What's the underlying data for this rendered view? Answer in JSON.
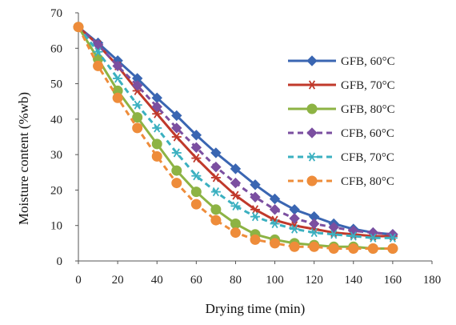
{
  "chart_data": {
    "type": "line",
    "title": "",
    "xlabel": "Drying time (min)",
    "ylabel": "Moisture content (%wb)",
    "xlim": [
      0,
      180
    ],
    "ylim": [
      0,
      70
    ],
    "x_ticks": [
      0,
      20,
      40,
      60,
      80,
      100,
      120,
      140,
      160,
      180
    ],
    "y_ticks": [
      0,
      10,
      20,
      30,
      40,
      50,
      60,
      70
    ],
    "grid": false,
    "legend_position": "right",
    "series": [
      {
        "name": "GFB, 60°C",
        "color": "#3a66b2",
        "line_style": "solid",
        "marker": "diamond",
        "x": [
          0,
          10,
          20,
          30,
          40,
          50,
          60,
          70,
          80,
          90,
          100,
          110,
          120,
          130,
          140,
          150,
          160
        ],
        "y": [
          66,
          61.5,
          56.5,
          51.5,
          46,
          41,
          35.5,
          30.5,
          26,
          21.5,
          17.5,
          14.5,
          12.5,
          10.5,
          9,
          8,
          7.5
        ]
      },
      {
        "name": "GFB, 70°C",
        "color": "#c0392b",
        "line_style": "solid",
        "marker": "asterisk",
        "x": [
          0,
          10,
          20,
          30,
          40,
          50,
          60,
          70,
          80,
          90,
          100,
          110,
          120,
          130,
          140,
          150,
          160
        ],
        "y": [
          66,
          61,
          55,
          48,
          41.5,
          35,
          29,
          23.5,
          18.5,
          14.5,
          11.5,
          10,
          9,
          8,
          7.5,
          7,
          7
        ]
      },
      {
        "name": "GFB, 80°C",
        "color": "#8db344",
        "line_style": "solid",
        "marker": "circle",
        "x": [
          0,
          10,
          20,
          30,
          40,
          50,
          60,
          70,
          80,
          90,
          100,
          110,
          120,
          130,
          140,
          150,
          160
        ],
        "y": [
          66,
          57,
          48,
          40.5,
          33,
          25.5,
          19.5,
          14.5,
          10.5,
          7.5,
          6,
          5,
          4.5,
          4,
          4,
          3.5,
          3.5
        ]
      },
      {
        "name": "CFB, 60°C",
        "color": "#7b4fa0",
        "line_style": "dashed",
        "marker": "diamond",
        "x": [
          0,
          10,
          20,
          30,
          40,
          50,
          60,
          70,
          80,
          90,
          100,
          110,
          120,
          130,
          140,
          150,
          160
        ],
        "y": [
          66,
          61,
          55,
          49.5,
          43.5,
          37.5,
          32,
          26.5,
          22,
          18,
          14.5,
          12,
          10.5,
          9.5,
          8.5,
          8,
          7.5
        ]
      },
      {
        "name": "CFB, 70°C",
        "color": "#3bb0c0",
        "line_style": "dashed",
        "marker": "asterisk",
        "x": [
          0,
          10,
          20,
          30,
          40,
          50,
          60,
          70,
          80,
          90,
          100,
          110,
          120,
          130,
          140,
          150,
          160
        ],
        "y": [
          66,
          59,
          51.5,
          44,
          37.5,
          30.5,
          24,
          19.5,
          15.5,
          12.5,
          10.5,
          9,
          8,
          7.5,
          7,
          6.5,
          6.5
        ]
      },
      {
        "name": "CFB, 80°C",
        "color": "#ee8c3a",
        "line_style": "dashed",
        "marker": "circle",
        "x": [
          0,
          10,
          20,
          30,
          40,
          50,
          60,
          70,
          80,
          90,
          100,
          110,
          120,
          130,
          140,
          150,
          160
        ],
        "y": [
          66,
          55,
          46,
          37.5,
          29.5,
          22,
          16,
          11.5,
          8,
          6,
          5,
          4,
          4,
          3.5,
          3.5,
          3.5,
          3.5
        ]
      }
    ]
  }
}
